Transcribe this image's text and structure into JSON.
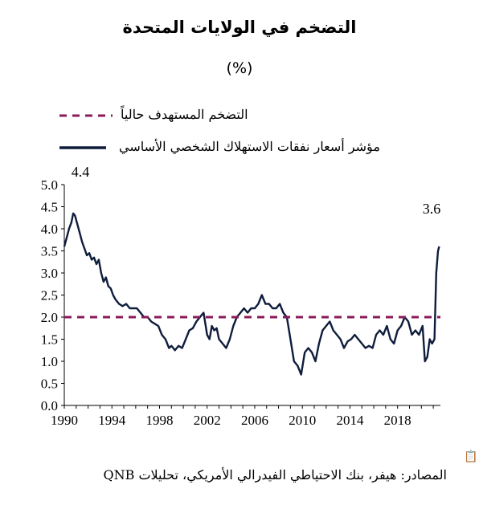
{
  "title": "التضخم في الولايات المتحدة",
  "subtitle": "(%)",
  "legend": {
    "target_label": "التضخم المستهدف حالياً",
    "pce_label": "مؤشر أسعار نفقات الاستهلاك الشخصي الأساسي"
  },
  "source": "المصادر: هيفر، بنك الاحتياطي الفيدرالي الأمريكي، تحليلات QNB",
  "annotations": {
    "start": "4.4",
    "end": "3.6"
  },
  "icons": {
    "clipboard": "clipboard-icon"
  },
  "colors": {
    "target": "#8B1A5B",
    "pce": "#0F1D3C"
  },
  "chart_data": {
    "type": "line",
    "ylim": [
      0,
      5
    ],
    "xlim": [
      1990,
      2021.6
    ],
    "x_ticks": [
      "1990",
      "1994",
      "1998",
      "2002",
      "2006",
      "2010",
      "2014",
      "2018"
    ],
    "y_ticks": [
      "0.0",
      "0.5",
      "1.0",
      "1.5",
      "2.0",
      "2.5",
      "3.0",
      "3.5",
      "4.0",
      "4.5",
      "5.0"
    ],
    "series": [
      {
        "name": "مؤشر أسعار نفقات الاستهلاك الشخصي الأساسي",
        "style": "solid",
        "x": [
          1990.0,
          1990.2,
          1990.4,
          1990.6,
          1990.75,
          1990.9,
          1991.1,
          1991.3,
          1991.5,
          1991.7,
          1991.9,
          1992.1,
          1992.3,
          1992.5,
          1992.7,
          1992.9,
          1993.1,
          1993.3,
          1993.5,
          1993.7,
          1993.9,
          1994.1,
          1994.3,
          1994.6,
          1994.9,
          1995.2,
          1995.5,
          1995.8,
          1996.1,
          1996.4,
          1996.7,
          1997.0,
          1997.3,
          1997.6,
          1997.9,
          1998.2,
          1998.5,
          1998.8,
          1999.0,
          1999.3,
          1999.6,
          1999.9,
          2000.2,
          2000.5,
          2000.8,
          2001.1,
          2001.4,
          2001.7,
          2002.0,
          2002.2,
          2002.4,
          2002.6,
          2002.8,
          2003.0,
          2003.3,
          2003.6,
          2003.9,
          2004.2,
          2004.5,
          2004.8,
          2005.1,
          2005.4,
          2005.7,
          2006.0,
          2006.3,
          2006.6,
          2006.9,
          2007.2,
          2007.5,
          2007.8,
          2008.1,
          2008.4,
          2008.7,
          2009.0,
          2009.3,
          2009.6,
          2009.9,
          2010.2,
          2010.5,
          2010.8,
          2011.1,
          2011.4,
          2011.7,
          2012.0,
          2012.3,
          2012.6,
          2012.9,
          2013.2,
          2013.5,
          2013.8,
          2014.1,
          2014.4,
          2014.7,
          2015.0,
          2015.3,
          2015.6,
          2015.9,
          2016.2,
          2016.5,
          2016.8,
          2017.1,
          2017.4,
          2017.7,
          2018.0,
          2018.3,
          2018.6,
          2018.9,
          2019.2,
          2019.5,
          2019.8,
          2020.1,
          2020.3,
          2020.5,
          2020.7,
          2020.9,
          2021.1,
          2021.25,
          2021.4,
          2021.5
        ],
        "y": [
          3.6,
          3.8,
          4.0,
          4.15,
          4.35,
          4.3,
          4.1,
          3.9,
          3.7,
          3.55,
          3.4,
          3.45,
          3.3,
          3.35,
          3.2,
          3.3,
          3.0,
          2.8,
          2.9,
          2.7,
          2.65,
          2.5,
          2.4,
          2.3,
          2.25,
          2.3,
          2.2,
          2.2,
          2.2,
          2.1,
          2.0,
          2.0,
          1.9,
          1.85,
          1.8,
          1.6,
          1.5,
          1.3,
          1.35,
          1.25,
          1.35,
          1.3,
          1.5,
          1.7,
          1.75,
          1.9,
          2.0,
          2.1,
          1.6,
          1.5,
          1.8,
          1.7,
          1.75,
          1.5,
          1.4,
          1.3,
          1.5,
          1.8,
          2.0,
          2.1,
          2.2,
          2.1,
          2.2,
          2.2,
          2.3,
          2.5,
          2.3,
          2.3,
          2.2,
          2.2,
          2.3,
          2.1,
          2.0,
          1.5,
          1.0,
          0.9,
          0.7,
          1.2,
          1.3,
          1.2,
          1.0,
          1.4,
          1.7,
          1.8,
          1.9,
          1.7,
          1.6,
          1.5,
          1.3,
          1.45,
          1.5,
          1.6,
          1.5,
          1.4,
          1.3,
          1.35,
          1.3,
          1.6,
          1.7,
          1.6,
          1.8,
          1.5,
          1.4,
          1.7,
          1.8,
          2.0,
          1.9,
          1.6,
          1.7,
          1.6,
          1.8,
          1.0,
          1.1,
          1.5,
          1.4,
          1.5,
          3.0,
          3.5,
          3.6
        ]
      },
      {
        "name": "التضخم المستهدف حالياً",
        "style": "dashed",
        "x": [
          1990,
          2021.6
        ],
        "y": [
          2.0,
          2.0
        ]
      }
    ]
  }
}
